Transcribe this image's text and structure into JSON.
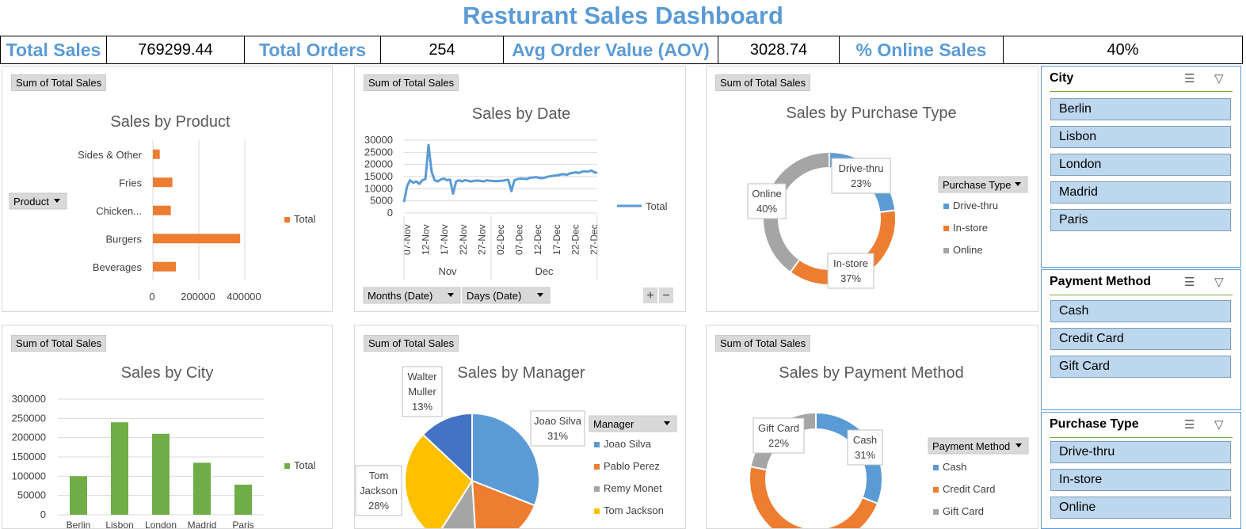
{
  "title": "Resturant Sales Dashboard",
  "kpis": [
    {
      "label": "Total Sales",
      "value": "769299.44"
    },
    {
      "label": "Total Orders",
      "value": "254"
    },
    {
      "label": "Avg Order Value (AOV)",
      "value": "3028.74"
    },
    {
      "label": "% Online Sales",
      "value": "40%"
    }
  ],
  "field_button": "Sum of Total Sales",
  "legend_total": "Total",
  "colors": {
    "blue": "#5b9bd5",
    "orange": "#ed7d31",
    "gray": "#a5a5a5",
    "yellow": "#ffc000",
    "darkblue": "#4472c4",
    "green": "#70ad47"
  },
  "chart_data": [
    {
      "type": "bar",
      "title": "Sales by Product",
      "categories": [
        "Sides & Other",
        "Fries",
        "Chicken...",
        "Burgers",
        "Beverages"
      ],
      "values": [
        30000,
        85000,
        78000,
        380000,
        100000
      ],
      "xlim": [
        0,
        400000
      ],
      "xticks": [
        "0",
        "200000",
        "400000"
      ],
      "filter_label": "Product",
      "legend": [
        "Total"
      ]
    },
    {
      "type": "line",
      "title": "Sales by Date",
      "yticks": [
        "30000",
        "25000",
        "20000",
        "15000",
        "10000",
        "5000",
        "0"
      ],
      "ylim": [
        0,
        30000
      ],
      "date_ticks": [
        "07-Nov",
        "12-Nov",
        "17-Nov",
        "22-Nov",
        "27-Nov",
        "02-Dec",
        "07-Dec",
        "12-Dec",
        "17-Dec",
        "22-Dec",
        "27-Dec"
      ],
      "months": [
        "Nov",
        "Dec"
      ],
      "values": [
        4500,
        11000,
        13500,
        12500,
        13000,
        12000,
        13500,
        14000,
        28000,
        17000,
        13500,
        13000,
        13800,
        14200,
        13500,
        13800,
        8000,
        13000,
        13500,
        13000,
        13600,
        13200,
        13000,
        13300,
        13400,
        13200,
        13000,
        13500,
        13300,
        13200,
        13100,
        13200,
        13300,
        13500,
        13700,
        9000,
        13500,
        14000,
        14200,
        14100,
        14000,
        14500,
        14600,
        14800,
        14500,
        14300,
        14600,
        15000,
        15200,
        15400,
        15500,
        15800,
        16000,
        15700,
        16300,
        16500,
        16800,
        16500,
        17000,
        17200,
        17000,
        17500,
        16800,
        16500
      ],
      "legend": [
        "Total"
      ],
      "filter_buttons": [
        "Months (Date)",
        "Days (Date)"
      ]
    },
    {
      "type": "pie",
      "title": "Sales by Purchase Type",
      "donut": true,
      "legend_title": "Purchase Type",
      "slices": [
        {
          "name": "Drive-thru",
          "pct": 23,
          "label": "23%"
        },
        {
          "name": "In-store",
          "pct": 37,
          "label": "37%"
        },
        {
          "name": "Online",
          "pct": 40,
          "label": "40%"
        }
      ]
    },
    {
      "type": "bar",
      "title": "Sales by City",
      "categories": [
        "Berlin",
        "Lisbon",
        "London",
        "Madrid",
        "Paris"
      ],
      "values": [
        100000,
        240000,
        210000,
        135000,
        78000
      ],
      "ylim": [
        0,
        300000
      ],
      "yticks": [
        "300000",
        "250000",
        "200000",
        "150000",
        "100000",
        "50000",
        "0"
      ],
      "legend": [
        "Total"
      ]
    },
    {
      "type": "pie",
      "title": "Sales by Manager",
      "legend_title": "Manager",
      "slices": [
        {
          "name": "Joao Silva",
          "pct": 31,
          "label": "31%"
        },
        {
          "name": "Pablo Perez",
          "pct": 18,
          "label": ""
        },
        {
          "name": "Remy Monet",
          "pct": 10,
          "label": ""
        },
        {
          "name": "Tom Jackson",
          "pct": 28,
          "label": "28%"
        },
        {
          "name": "Walter Muller",
          "pct": 13,
          "label": "13%"
        }
      ],
      "legend": [
        "Joao Silva",
        "Pablo Perez",
        "Remy Monet",
        "Tom Jackson"
      ]
    },
    {
      "type": "pie",
      "title": "Sales by Payment Method",
      "donut": true,
      "legend_title": "Payment Method",
      "slices": [
        {
          "name": "Cash",
          "pct": 31,
          "label": "31%"
        },
        {
          "name": "Credit Card",
          "pct": 47,
          "label": ""
        },
        {
          "name": "Gift Card",
          "pct": 22,
          "label": "22%"
        }
      ]
    }
  ],
  "slicers": [
    {
      "title": "City",
      "items": [
        "Berlin",
        "Lisbon",
        "London",
        "Madrid",
        "Paris"
      ]
    },
    {
      "title": "Payment Method",
      "items": [
        "Cash",
        "Credit Card",
        "Gift Card"
      ]
    },
    {
      "title": "Purchase Type",
      "items": [
        "Drive-thru",
        "In-store",
        "Online"
      ]
    }
  ]
}
